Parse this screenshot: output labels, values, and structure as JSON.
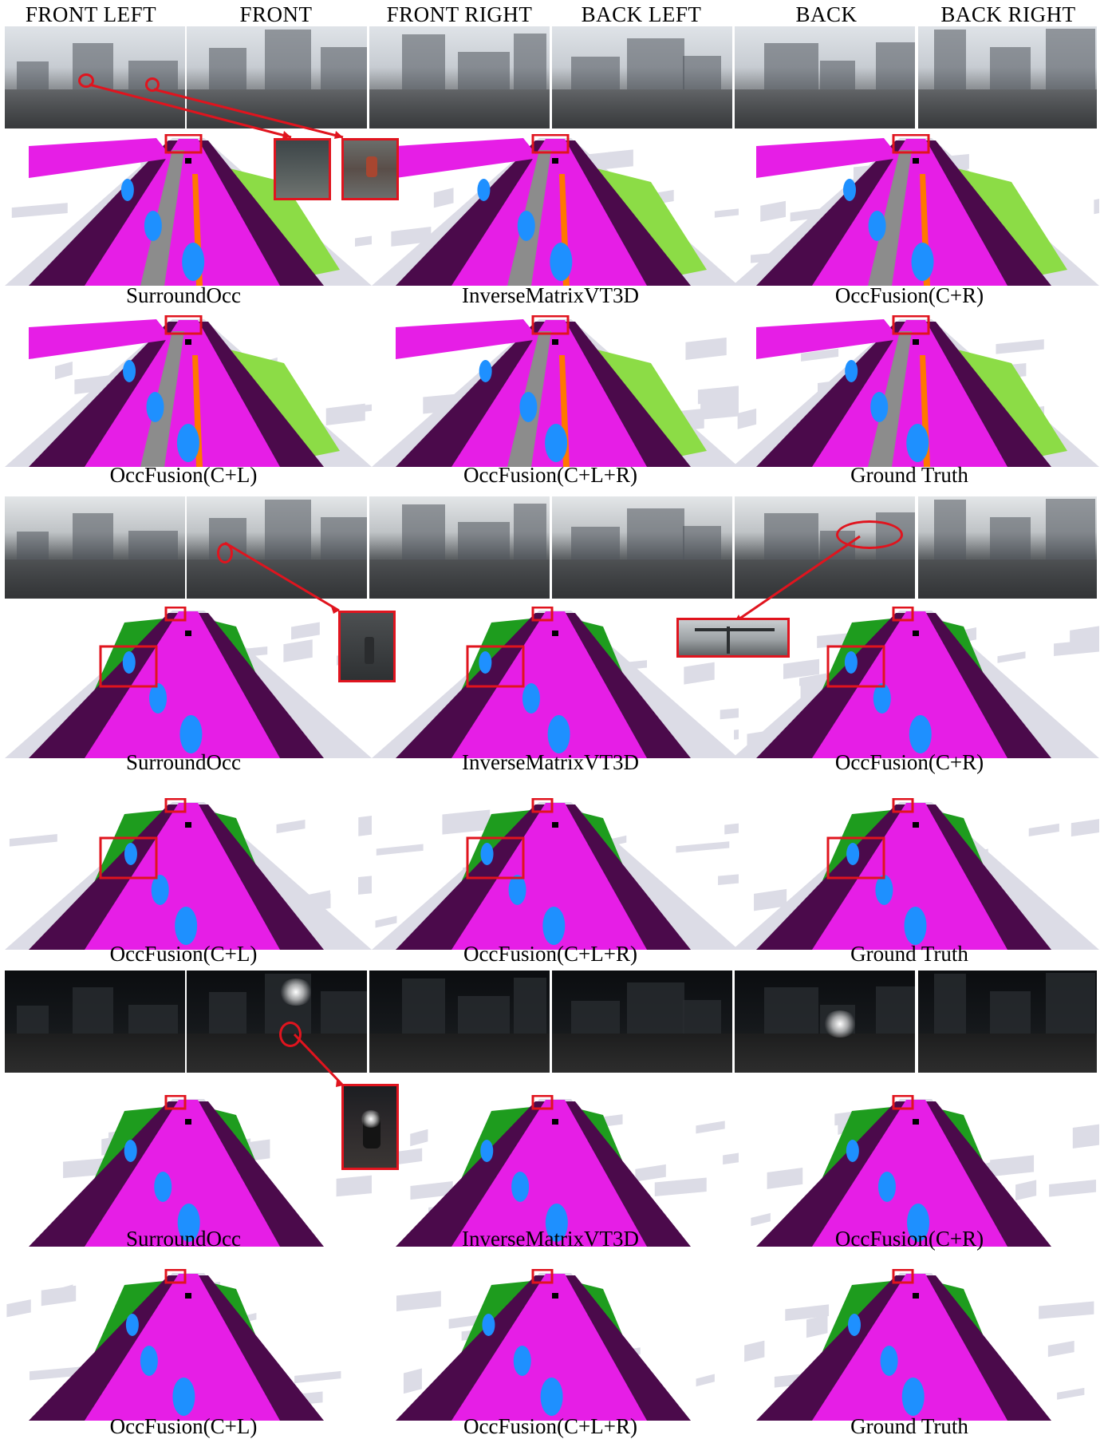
{
  "headers": [
    "FRONT LEFT",
    "FRONT",
    "FRONT RIGHT",
    "BACK LEFT",
    "BACK",
    "BACK RIGHT"
  ],
  "scenes": [
    {
      "condition": "day",
      "captions_row1": [
        "SurroundOcc",
        "InverseMatrixVT3D",
        "OccFusion(C+R)"
      ],
      "captions_row2": [
        "OccFusion(C+L)",
        "OccFusion(C+L+R)",
        "Ground Truth"
      ]
    },
    {
      "condition": "rain",
      "captions_row1": [
        "SurroundOcc",
        "InverseMatrixVT3D",
        "OccFusion(C+R)"
      ],
      "captions_row2": [
        "OccFusion(C+L)",
        "OccFusion(C+L+R)",
        "Ground Truth"
      ]
    },
    {
      "condition": "night",
      "captions_row1": [
        "SurroundOcc",
        "InverseMatrixVT3D",
        "OccFusion(C+R)"
      ],
      "captions_row2": [
        "OccFusion(C+L)",
        "OccFusion(C+L+R)",
        "Ground Truth"
      ]
    }
  ],
  "colors": {
    "drivable_surface": "#e61ee6",
    "sidewalk": "#4b0a4b",
    "manmade": "#dcdce6",
    "vegetation": "#1e9c1e",
    "terrain": "#8cdc46",
    "car": "#1e90ff",
    "sidewalk_gray": "#8c8c8c",
    "barrier": "#ff7800",
    "pedestrian": "#00c8c8",
    "highlight": "#e0141e"
  }
}
